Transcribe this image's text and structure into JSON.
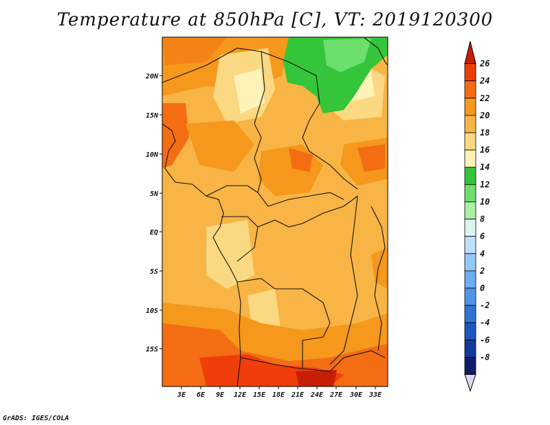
{
  "title": "Temperature at 850hPa [C], VT: 2019120300",
  "footer": "GrADS: IGES/COLA",
  "latitude_labels": [
    "20N",
    "15N",
    "10N",
    "5N",
    "EQ",
    "5S",
    "10S",
    "15S"
  ],
  "longitude_labels": [
    "3E",
    "6E",
    "9E",
    "12E",
    "15E",
    "18E",
    "21E",
    "24E",
    "27E",
    "30E",
    "33E"
  ],
  "colorbar": {
    "labels": [
      "26",
      "24",
      "22",
      "20",
      "18",
      "16",
      "14",
      "12",
      "10",
      "8",
      "6",
      "4",
      "2",
      "0",
      "-2",
      "-4",
      "-6",
      "-8"
    ],
    "colors": [
      "#c81e06",
      "#ef3e0a",
      "#f46d12",
      "#f5981b",
      "#f8b545",
      "#fbd882",
      "#fdf3b8",
      "#35c53a",
      "#6ce06a",
      "#a8f0a3",
      "#dcf5ee",
      "#bfe0fb",
      "#96c8f6",
      "#6caef1",
      "#4d95e7",
      "#2f75d6",
      "#1d57c2",
      "#143a9c",
      "#0f1e6b"
    ],
    "under_color": "#dcd7f5"
  }
}
